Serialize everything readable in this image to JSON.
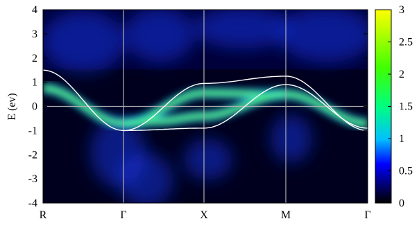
{
  "chart_data": {
    "type": "heatmap",
    "title": "",
    "xlabel": "",
    "ylabel": "E (ev)",
    "xticks": [
      "R",
      "Γ",
      "X",
      "M",
      "Γ"
    ],
    "yticks": [
      -4,
      -3,
      -2,
      -1,
      0,
      1,
      2,
      3,
      4
    ],
    "ylim": [
      -4,
      4
    ],
    "grid": true,
    "colorbar": {
      "range": [
        0,
        3
      ],
      "ticks": [
        0,
        0.5,
        1,
        1.5,
        2,
        2.5,
        3
      ],
      "colors": [
        "#000000",
        "#0000ff",
        "#00ffff",
        "#00ff00",
        "#ffff00"
      ]
    },
    "reference_lines": [
      {
        "name": "band-R-Gamma",
        "x": [
          "R",
          "Γ"
        ],
        "y": [
          1.5,
          -1.0
        ]
      },
      {
        "name": "band-Gamma-X",
        "x": [
          "Γ",
          "X"
        ],
        "y": [
          -1.0,
          -0.9
        ]
      },
      {
        "name": "band-Gamma-X-upper",
        "x": [
          "Γ",
          "X"
        ],
        "y": [
          -1.0,
          0.95
        ]
      },
      {
        "name": "band-X-M",
        "x": [
          "X",
          "M"
        ],
        "y": [
          0.95,
          1.25
        ]
      },
      {
        "name": "band-M-Gamma",
        "x": [
          "M",
          "Γ"
        ],
        "y": [
          1.25,
          -1.0
        ]
      }
    ],
    "colors": {
      "band_lines": "#ffffff",
      "grid": "#b0b0b0",
      "background": "#000000"
    }
  }
}
